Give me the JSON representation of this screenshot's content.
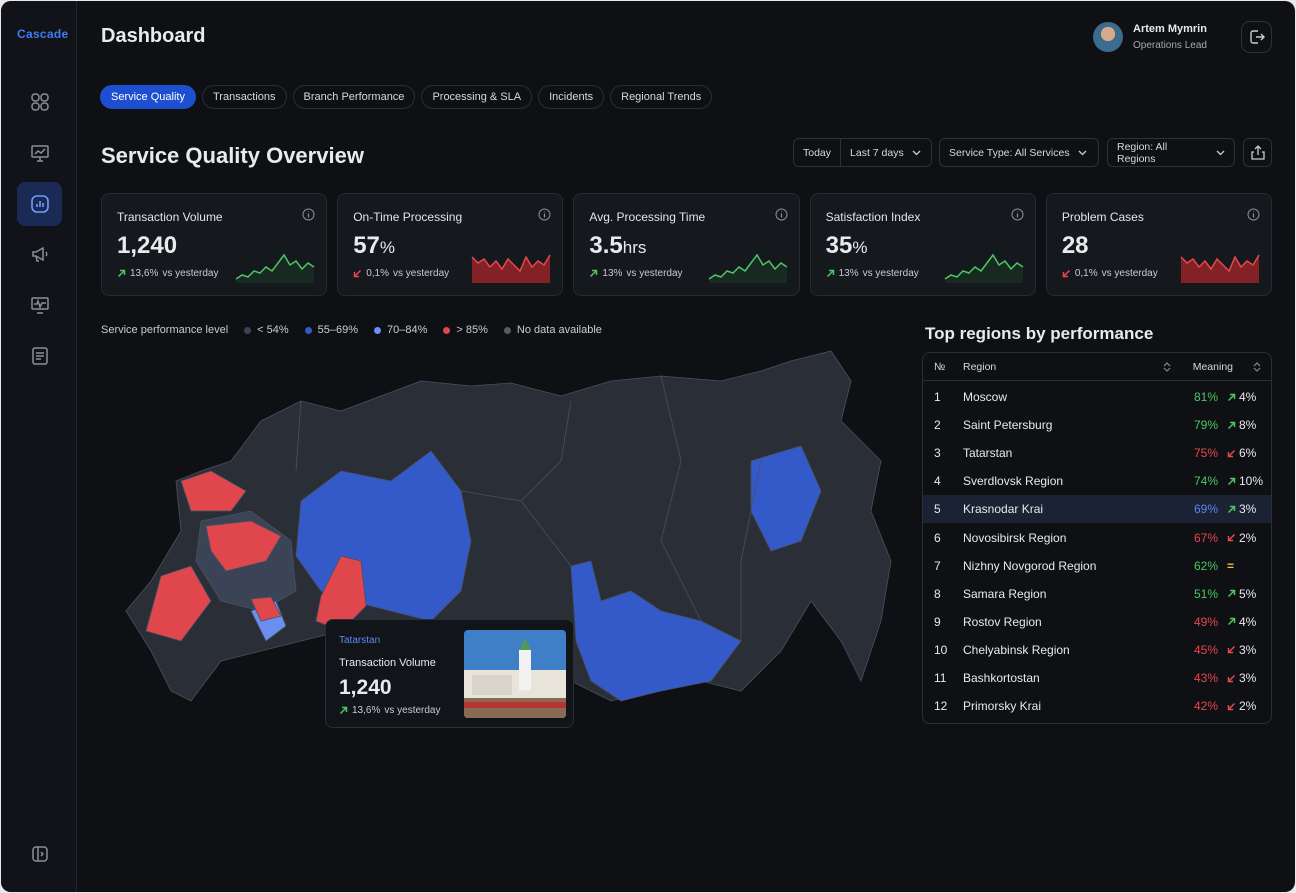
{
  "brand": "Cascade",
  "header": {
    "title": "Dashboard",
    "user": {
      "name": "Artem Mymrin",
      "role": "Operations Lead"
    }
  },
  "tabs": {
    "items": [
      "Service Quality",
      "Transactions",
      "Branch Performance",
      "Processing & SLA",
      "Incidents",
      "Regional Trends"
    ],
    "active": 0
  },
  "overview": {
    "title": "Service Quality Overview",
    "filters": {
      "range": [
        "Today",
        "Last 7 days"
      ],
      "service": "Service Type: All Services",
      "region": "Region: All Regions"
    }
  },
  "kpis": [
    {
      "label": "Transaction Volume",
      "value": "1,240",
      "change": "13,6%",
      "compare": "vs yesterday",
      "trend": "up"
    },
    {
      "label": "On-Time Processing",
      "value": "57",
      "unit": "%",
      "change": "0,1%",
      "compare": "vs yesterday",
      "trend": "down"
    },
    {
      "label": "Avg. Processing Time",
      "value": "3.5",
      "unit": "hrs",
      "change": "13%",
      "compare": "vs yesterday",
      "trend": "up"
    },
    {
      "label": "Satisfaction Index",
      "value": "35",
      "unit": "%",
      "change": "13%",
      "compare": "vs yesterday",
      "trend": "up"
    },
    {
      "label": "Problem Cases",
      "value": "28",
      "change": "0,1%",
      "compare": "vs yesterday",
      "trend": "down"
    }
  ],
  "map": {
    "legend": {
      "title": "Service performance level",
      "items": [
        {
          "label": "< 54%",
          "color": "#3b4456"
        },
        {
          "label": "55–69%",
          "color": "#3459c9"
        },
        {
          "label": "70–84%",
          "color": "#6a8ff0"
        },
        {
          "label": "> 85%",
          "color": "#e0474c"
        },
        {
          "label": "No data available",
          "color": "#555a63"
        }
      ]
    },
    "tooltip": {
      "region": "Tatarstan",
      "label": "Transaction Volume",
      "value": "1,240",
      "change": "13,6%",
      "compare": "vs yesterday",
      "trend": "up"
    }
  },
  "table": {
    "title": "Top regions by performance",
    "columns": [
      "№",
      "Region",
      "Meaning"
    ],
    "highlight": 4,
    "rows": [
      {
        "rank": "1",
        "region": "Moscow",
        "value": "81%",
        "change": "4%",
        "trend": "up",
        "color": "#4cc764"
      },
      {
        "rank": "2",
        "region": "Saint Petersburg",
        "value": "79%",
        "change": "8%",
        "trend": "up",
        "color": "#4cc764"
      },
      {
        "rank": "3",
        "region": "Tatarstan",
        "value": "75%",
        "change": "6%",
        "trend": "down",
        "color": "#e5484d"
      },
      {
        "rank": "4",
        "region": "Sverdlovsk Region",
        "value": "74%",
        "change": "10%",
        "trend": "up",
        "color": "#4cc764"
      },
      {
        "rank": "5",
        "region": "Krasnodar Krai",
        "value": "69%",
        "change": "3%",
        "trend": "up",
        "color": "#5b82f0"
      },
      {
        "rank": "6",
        "region": "Novosibirsk Region",
        "value": "67%",
        "change": "2%",
        "trend": "down",
        "color": "#e5484d"
      },
      {
        "rank": "7",
        "region": "Nizhny Novgorod Region",
        "value": "62%",
        "change": "=",
        "trend": "flat",
        "color": "#4cc764"
      },
      {
        "rank": "8",
        "region": "Samara Region",
        "value": "51%",
        "change": "5%",
        "trend": "up",
        "color": "#4cc764"
      },
      {
        "rank": "9",
        "region": "Rostov Region",
        "value": "49%",
        "change": "4%",
        "trend": "up",
        "color": "#e5484d"
      },
      {
        "rank": "10",
        "region": "Chelyabinsk Region",
        "value": "45%",
        "change": "3%",
        "trend": "down",
        "color": "#e5484d"
      },
      {
        "rank": "11",
        "region": "Bashkortostan",
        "value": "43%",
        "change": "3%",
        "trend": "down",
        "color": "#e5484d"
      },
      {
        "rank": "12",
        "region": "Primorsky Krai",
        "value": "42%",
        "change": "2%",
        "trend": "down",
        "color": "#e5484d"
      }
    ]
  }
}
